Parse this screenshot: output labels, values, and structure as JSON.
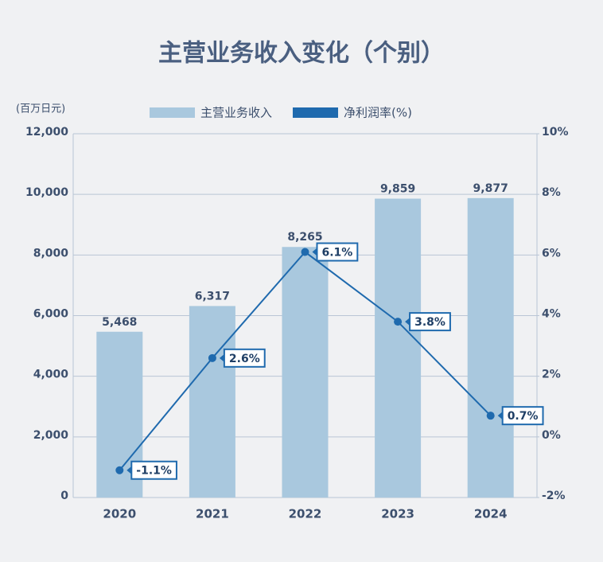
{
  "chart_data": {
    "type": "bar",
    "title": "主营业务收入变化（个别）",
    "y_label": "(百万日元)",
    "categories": [
      "2020",
      "2021",
      "2022",
      "2023",
      "2024"
    ],
    "series": [
      {
        "name": "主营业务收入",
        "type": "bar",
        "color": "#a9c8de",
        "values": [
          5468,
          6317,
          8265,
          9859,
          9877
        ],
        "value_labels": [
          "5,468",
          "6,317",
          "8,265",
          "9,859",
          "9,877"
        ]
      },
      {
        "name": "净利润率(%)",
        "type": "line",
        "axis": "y2",
        "color": "#1f6aae",
        "values": [
          -1.1,
          2.6,
          6.1,
          3.8,
          0.7
        ],
        "value_labels": [
          "-1.1%",
          "2.6%",
          "6.1%",
          "3.8%",
          "0.7%"
        ]
      }
    ],
    "ylim": [
      0,
      12000
    ],
    "yticks": [
      0,
      {
        "value": 2000,
        "label": "2,000"
      },
      {
        "value": 4000,
        "label": "4,000"
      },
      {
        "value": 6000,
        "label": "6,000"
      },
      {
        "value": 8000,
        "label": "8,000"
      },
      {
        "value": 10000,
        "label": "10,000"
      },
      {
        "value": 12000,
        "label": "12,000"
      }
    ],
    "y2lim": [
      -2,
      10
    ],
    "y2ticks": [
      {
        "value": -2,
        "label": "-2%"
      },
      {
        "value": 0,
        "label": "0%"
      },
      {
        "value": 2,
        "label": "2%"
      },
      {
        "value": 4,
        "label": "4%"
      },
      {
        "value": 6,
        "label": "6%"
      },
      {
        "value": 8,
        "label": "8%"
      },
      {
        "value": 10,
        "label": "10%"
      }
    ],
    "grid": true
  }
}
